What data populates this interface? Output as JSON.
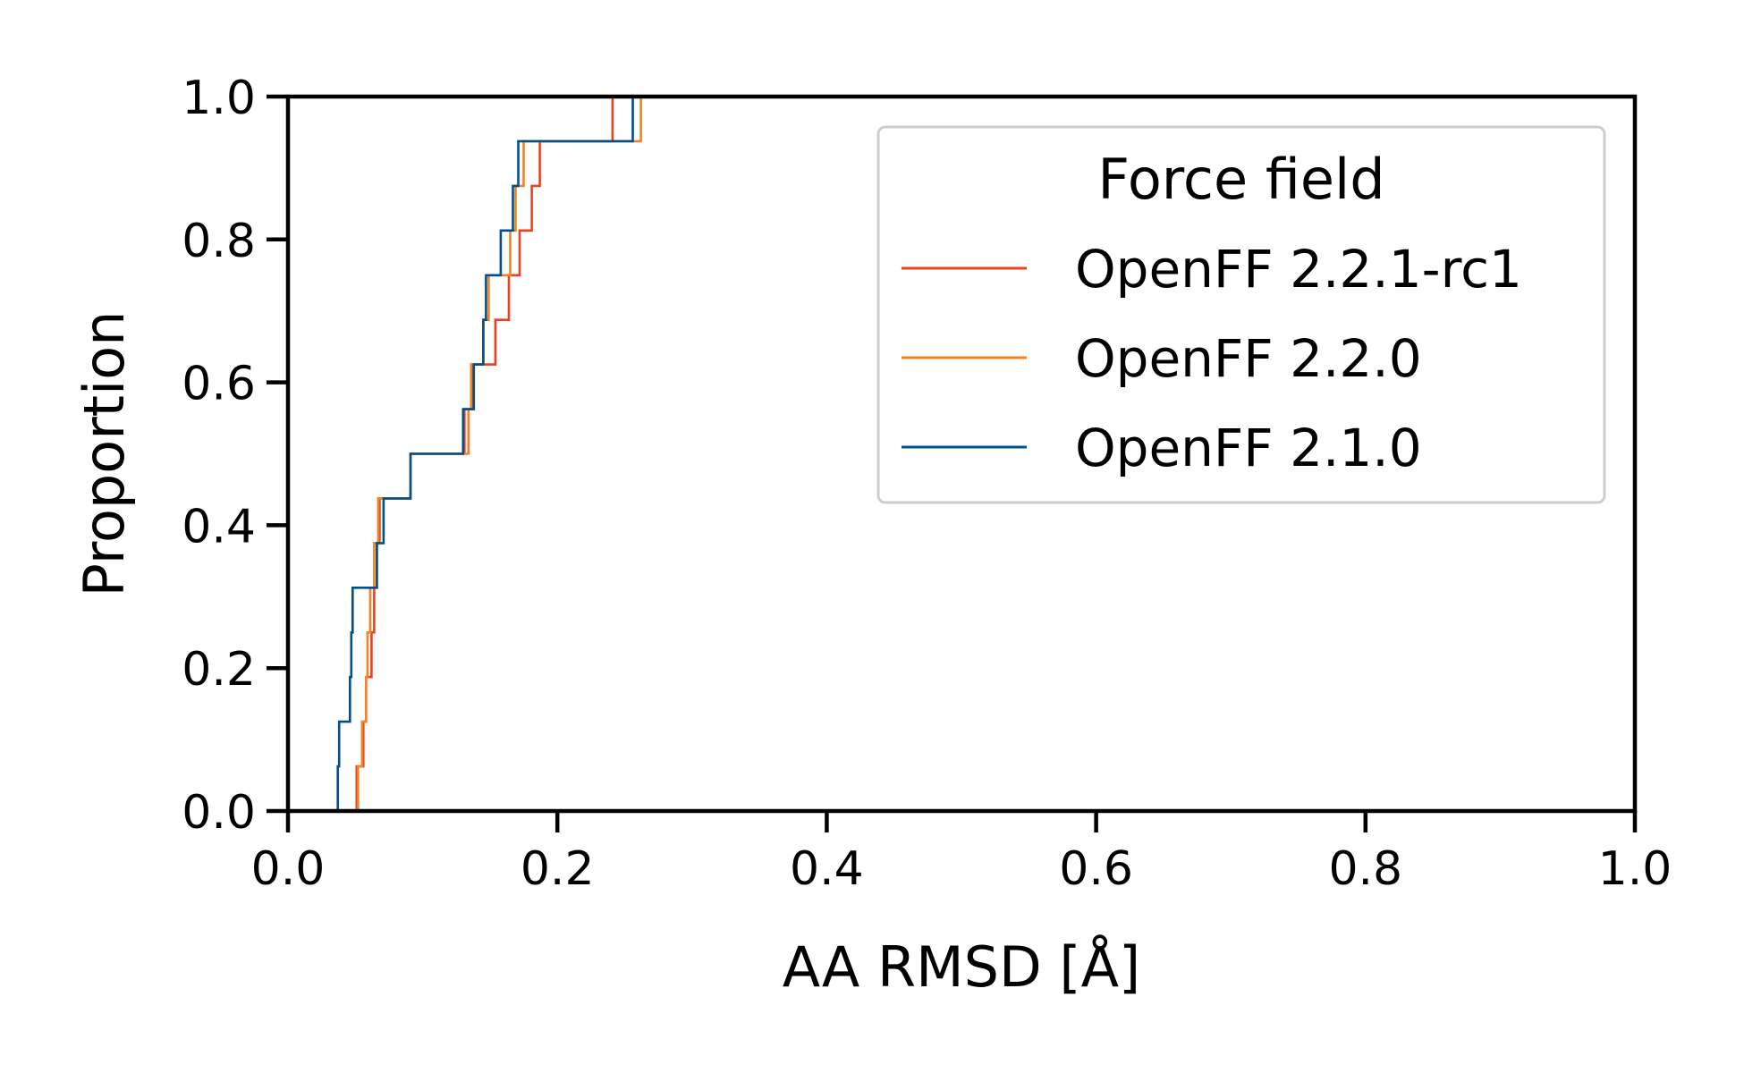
{
  "chart_data": {
    "type": "line",
    "xlabel": "AA RMSD [Å]",
    "ylabel": "Proportion",
    "xlim": [
      0.0,
      1.0
    ],
    "ylim": [
      0.0,
      1.0
    ],
    "xticks": [
      "0.0",
      "0.2",
      "0.4",
      "0.6",
      "0.8",
      "1.0"
    ],
    "yticks": [
      "0.0",
      "0.2",
      "0.4",
      "0.6",
      "0.8",
      "1.0"
    ],
    "grid": false,
    "legend": {
      "title": "Force field",
      "placement": "upper right"
    },
    "series": [
      {
        "name": "OpenFF 2.2.1-rc1",
        "color": "#ee4020",
        "values": [
          0.051,
          0.056,
          0.058,
          0.062,
          0.064,
          0.066,
          0.068,
          0.091,
          0.131,
          0.137,
          0.154,
          0.164,
          0.172,
          0.181,
          0.187,
          0.241
        ]
      },
      {
        "name": "OpenFF 2.2.0",
        "color": "#f58220",
        "values": [
          0.052,
          0.055,
          0.058,
          0.059,
          0.061,
          0.064,
          0.067,
          0.091,
          0.134,
          0.136,
          0.145,
          0.149,
          0.165,
          0.169,
          0.175,
          0.262
        ]
      },
      {
        "name": "OpenFF 2.1.0",
        "color": "#00508c",
        "values": [
          0.037,
          0.038,
          0.046,
          0.047,
          0.048,
          0.066,
          0.071,
          0.091,
          0.13,
          0.138,
          0.145,
          0.147,
          0.158,
          0.167,
          0.171,
          0.256
        ]
      }
    ]
  }
}
